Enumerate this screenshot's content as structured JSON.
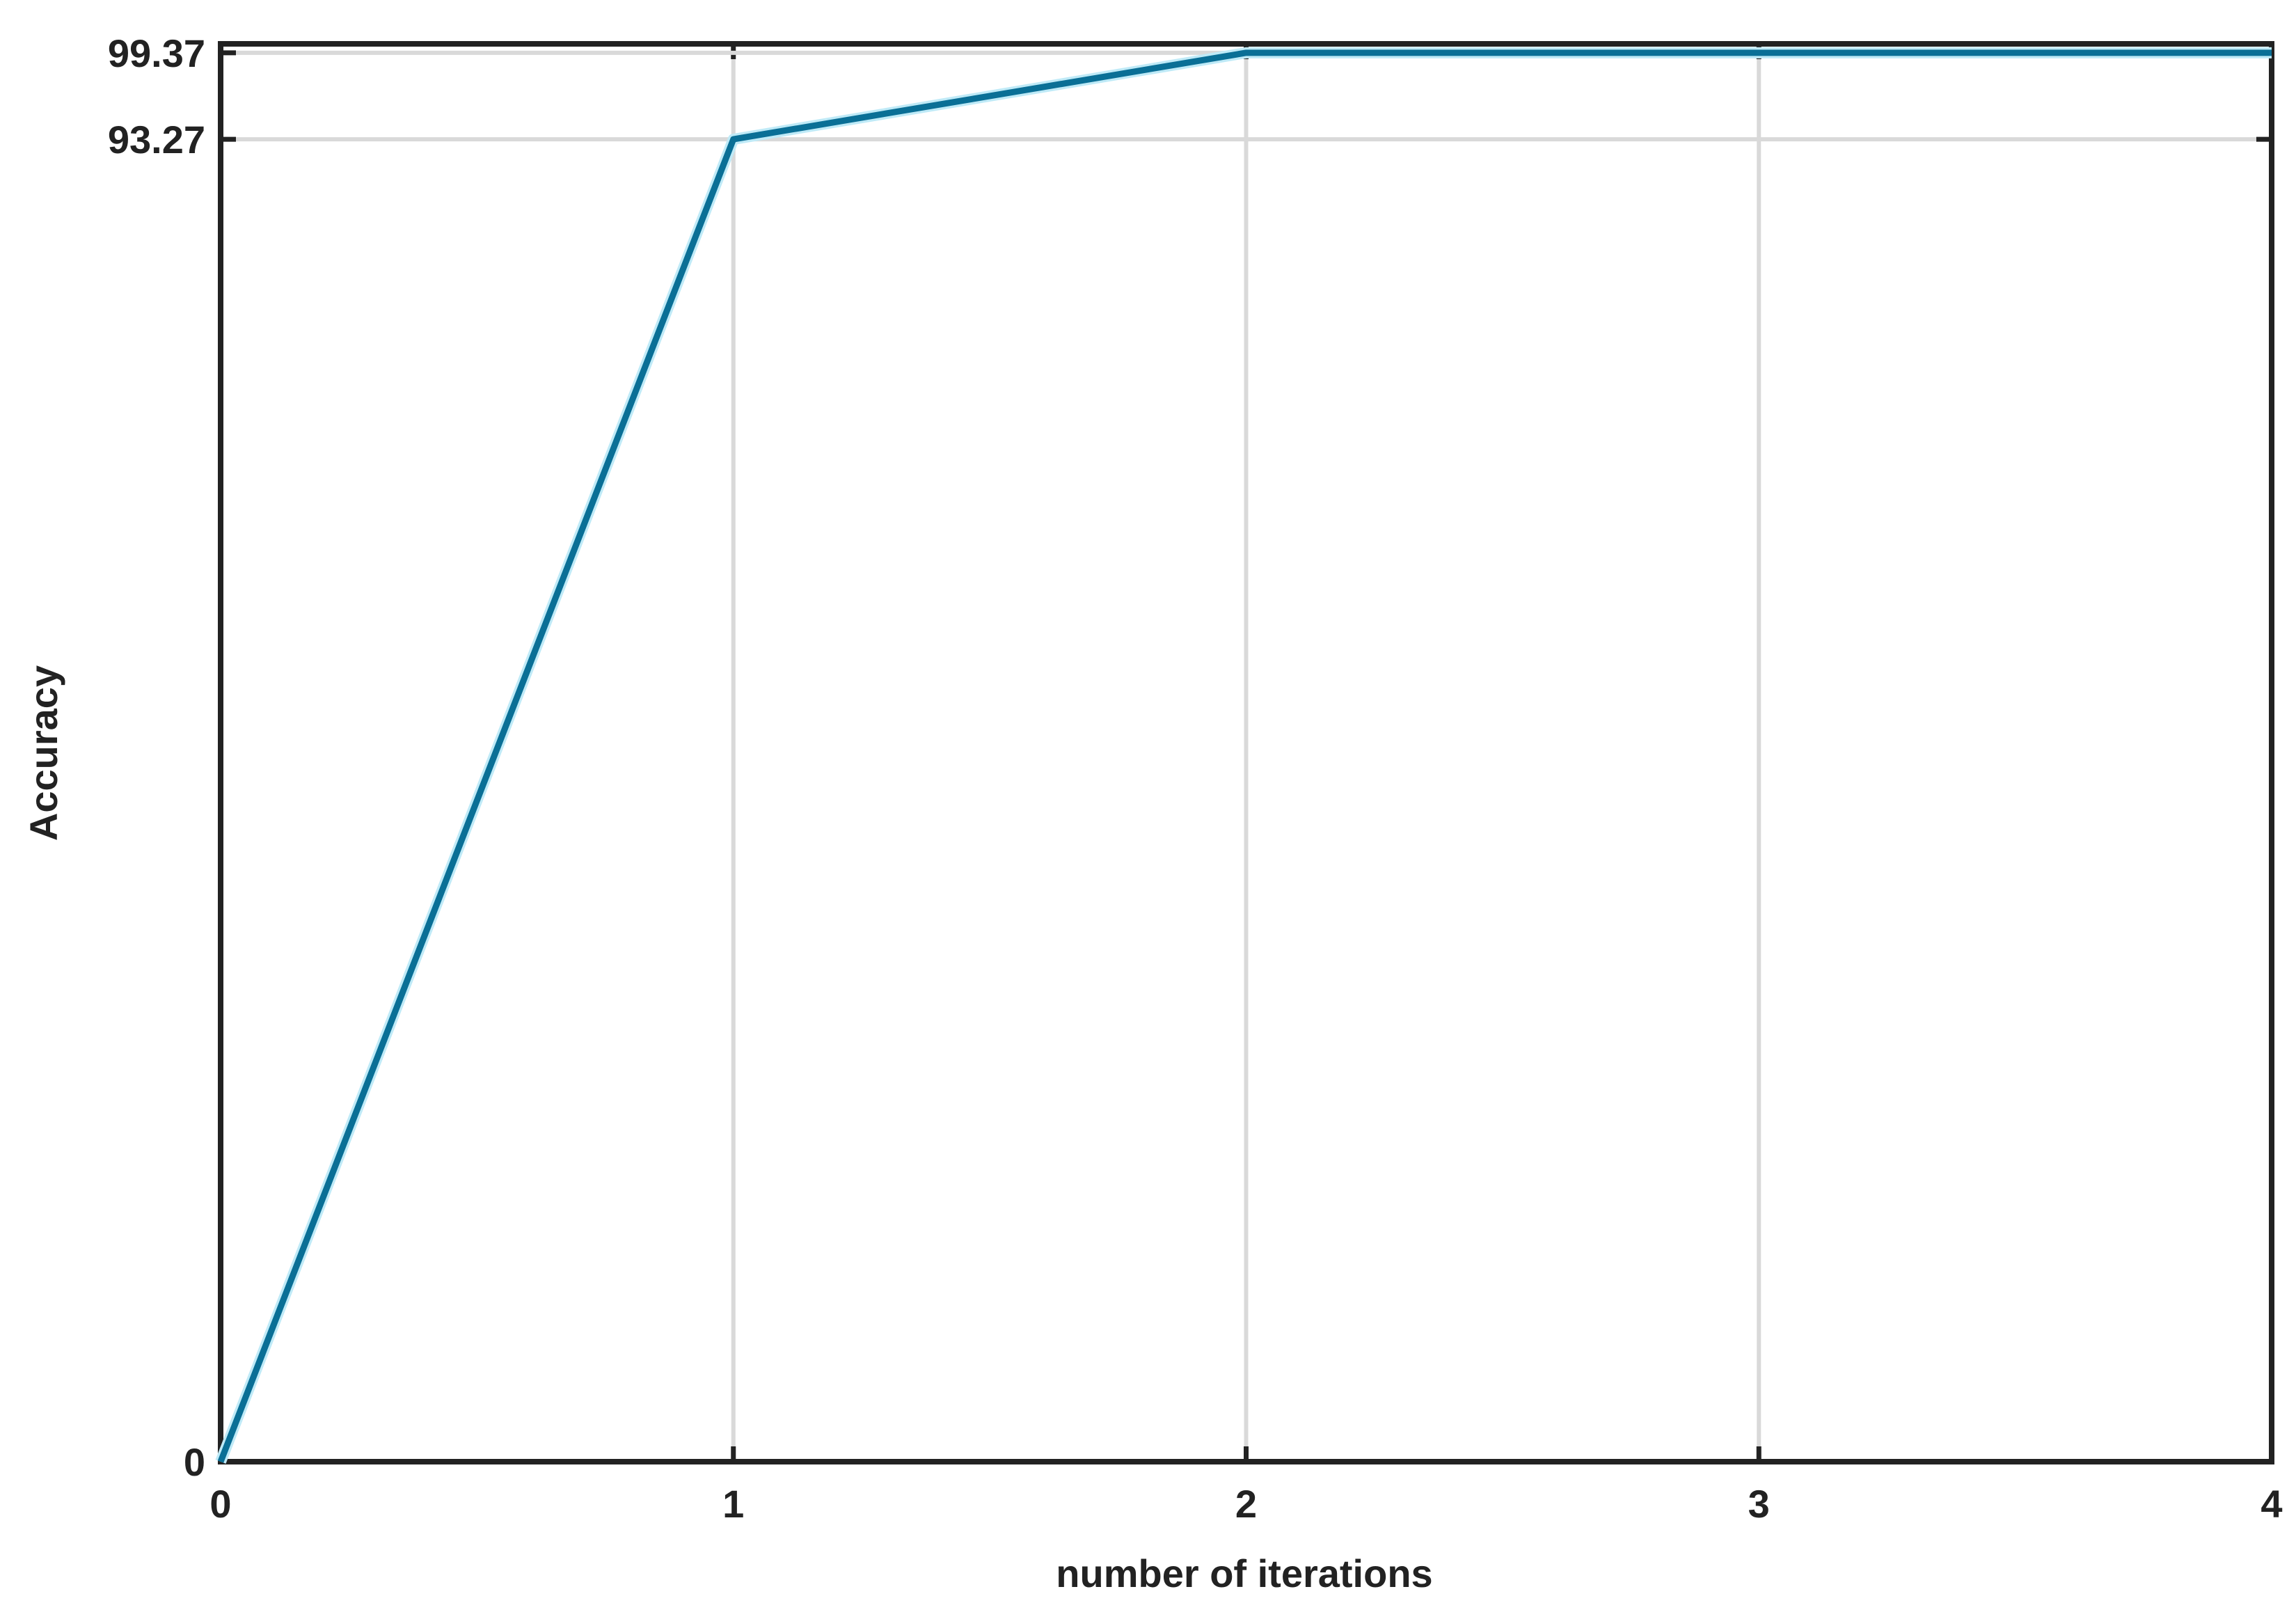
{
  "chart_data": {
    "type": "line",
    "xlabel": "number of iterations",
    "ylabel": "Accuracy",
    "x": [
      0,
      1,
      2,
      3,
      4
    ],
    "series": [
      {
        "color": "#0a6f96",
        "values": [
          0,
          93.27,
          99.37,
          99.37,
          99.37
        ]
      }
    ],
    "xlim": [
      0,
      4
    ],
    "xticks": [
      0,
      1,
      2,
      3,
      4
    ],
    "ylim": [
      0,
      100
    ],
    "yticks": [
      0,
      93.27,
      99.37
    ],
    "grid": true
  }
}
